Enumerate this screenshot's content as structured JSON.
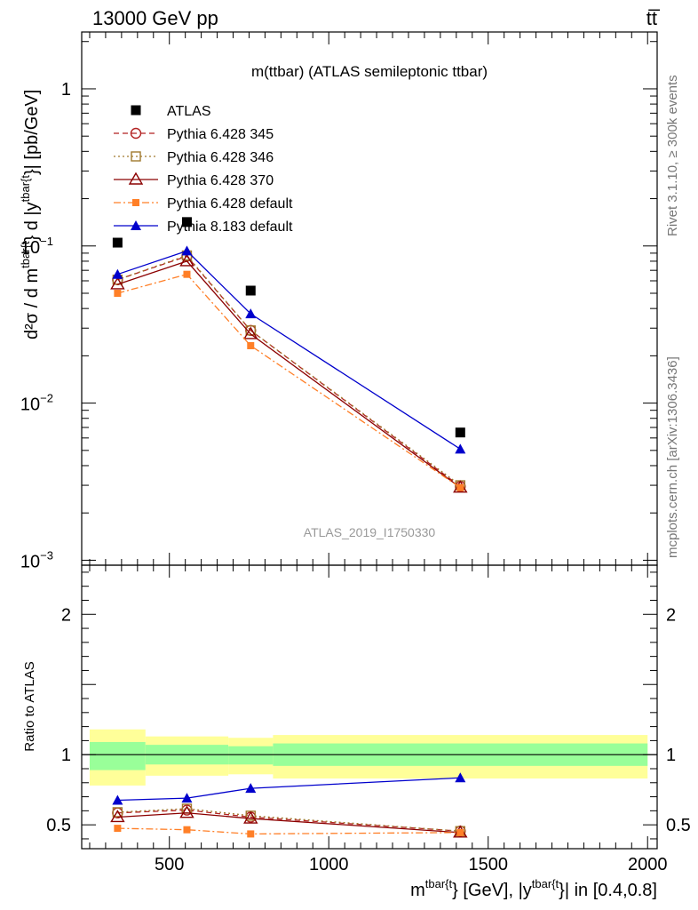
{
  "header": {
    "left": "13000 GeV pp",
    "right": "tt̅"
  },
  "side_labels": {
    "rivet": "Rivet 3.1.10, ≥ 300k events",
    "mcplots": "mcplots.cern.ch [arXiv:1306.3436]"
  },
  "chart_data": [
    {
      "type": "line",
      "panel": "main",
      "title": "m(ttbar) (ATLAS semileptonic ttbar)",
      "watermark": "ATLAS_2019_I1750330",
      "yscale": "log",
      "ylim": [
        0.00093,
        2.3
      ],
      "xlim": [
        225,
        2030
      ],
      "ylabel_parts": {
        "main": "d²σ / d m",
        "sup1": "tbar{t",
        "mid": "} d |y",
        "sup2": "tbar{t",
        "end": "}| [pb/GeV]"
      },
      "yticks": [
        {
          "value": 0.001,
          "base": "10",
          "exp": "−3"
        },
        {
          "value": 0.01,
          "base": "10",
          "exp": "−2"
        },
        {
          "value": 0.1,
          "base": "10",
          "exp": "−1"
        },
        {
          "value": 1,
          "base": "1",
          "exp": ""
        }
      ],
      "x": [
        337.5,
        555,
        755,
        1412.5
      ],
      "series": [
        {
          "name": "ATLAS",
          "color": "#000000",
          "marker": "square-filled",
          "dash": "none",
          "values": [
            0.105,
            0.142,
            0.052,
            0.0065
          ]
        },
        {
          "name": "Pythia 6.428 345",
          "color": "#b22222",
          "marker": "circle-open",
          "dash": "dashed",
          "values": [
            0.061,
            0.086,
            0.029,
            0.00295
          ]
        },
        {
          "name": "Pythia 6.428 346",
          "color": "#a0792d",
          "marker": "square-open",
          "dash": "dotted",
          "values": [
            0.061,
            0.087,
            0.029,
            0.003
          ]
        },
        {
          "name": "Pythia 6.428 370",
          "color": "#8b0000",
          "marker": "triangle-open",
          "dash": "solid",
          "values": [
            0.057,
            0.08,
            0.0275,
            0.0029
          ]
        },
        {
          "name": "Pythia 6.428 default",
          "color": "#ff7f27",
          "marker": "square-filled-small",
          "dash": "dashdot",
          "values": [
            0.05,
            0.066,
            0.0232,
            0.0029
          ]
        },
        {
          "name": "Pythia 8.183 default",
          "color": "#0000cc",
          "marker": "triangle-filled",
          "dash": "solid",
          "values": [
            0.066,
            0.093,
            0.037,
            0.0051
          ]
        }
      ]
    },
    {
      "type": "line",
      "panel": "ratio",
      "ylabel": "Ratio to ATLAS",
      "ylim": [
        0.33,
        2.35
      ],
      "xlim": [
        225,
        2030
      ],
      "yticks": [
        0.5,
        1,
        2
      ],
      "ytick_labels": [
        "0.5",
        "1",
        "2"
      ],
      "xticks": [
        500,
        1000,
        1500,
        2000
      ],
      "xtick_labels": [
        "500",
        "1000",
        "1500",
        "2000"
      ],
      "xlabel_parts": {
        "main": "m",
        "sup1": "tbar{t",
        "mid": "} [GeV], |y",
        "sup2": "tbar{t",
        "end": "}| in [0.4,0.8]"
      },
      "bands": [
        {
          "xmin": 250,
          "xmax": 425,
          "yellow": [
            0.78,
            1.18
          ],
          "green": [
            0.89,
            1.09
          ]
        },
        {
          "xmin": 425,
          "xmax": 685,
          "yellow": [
            0.85,
            1.13
          ],
          "green": [
            0.93,
            1.07
          ]
        },
        {
          "xmin": 685,
          "xmax": 825,
          "yellow": [
            0.86,
            1.12
          ],
          "green": [
            0.93,
            1.06
          ]
        },
        {
          "xmin": 825,
          "xmax": 2000,
          "yellow": [
            0.83,
            1.14
          ],
          "green": [
            0.92,
            1.08
          ]
        }
      ],
      "x": [
        337.5,
        555,
        755,
        1412.5
      ],
      "series": [
        {
          "name": "Pythia 6.428 345",
          "values": [
            0.585,
            0.605,
            0.555,
            0.455
          ]
        },
        {
          "name": "Pythia 6.428 346",
          "values": [
            0.59,
            0.615,
            0.565,
            0.455
          ]
        },
        {
          "name": "Pythia 6.428 370",
          "values": [
            0.555,
            0.585,
            0.545,
            0.445
          ]
        },
        {
          "name": "Pythia 6.428 default",
          "values": [
            0.475,
            0.465,
            0.435,
            0.445
          ]
        },
        {
          "name": "Pythia 8.183 default",
          "values": [
            0.675,
            0.69,
            0.76,
            0.835
          ]
        }
      ]
    }
  ]
}
